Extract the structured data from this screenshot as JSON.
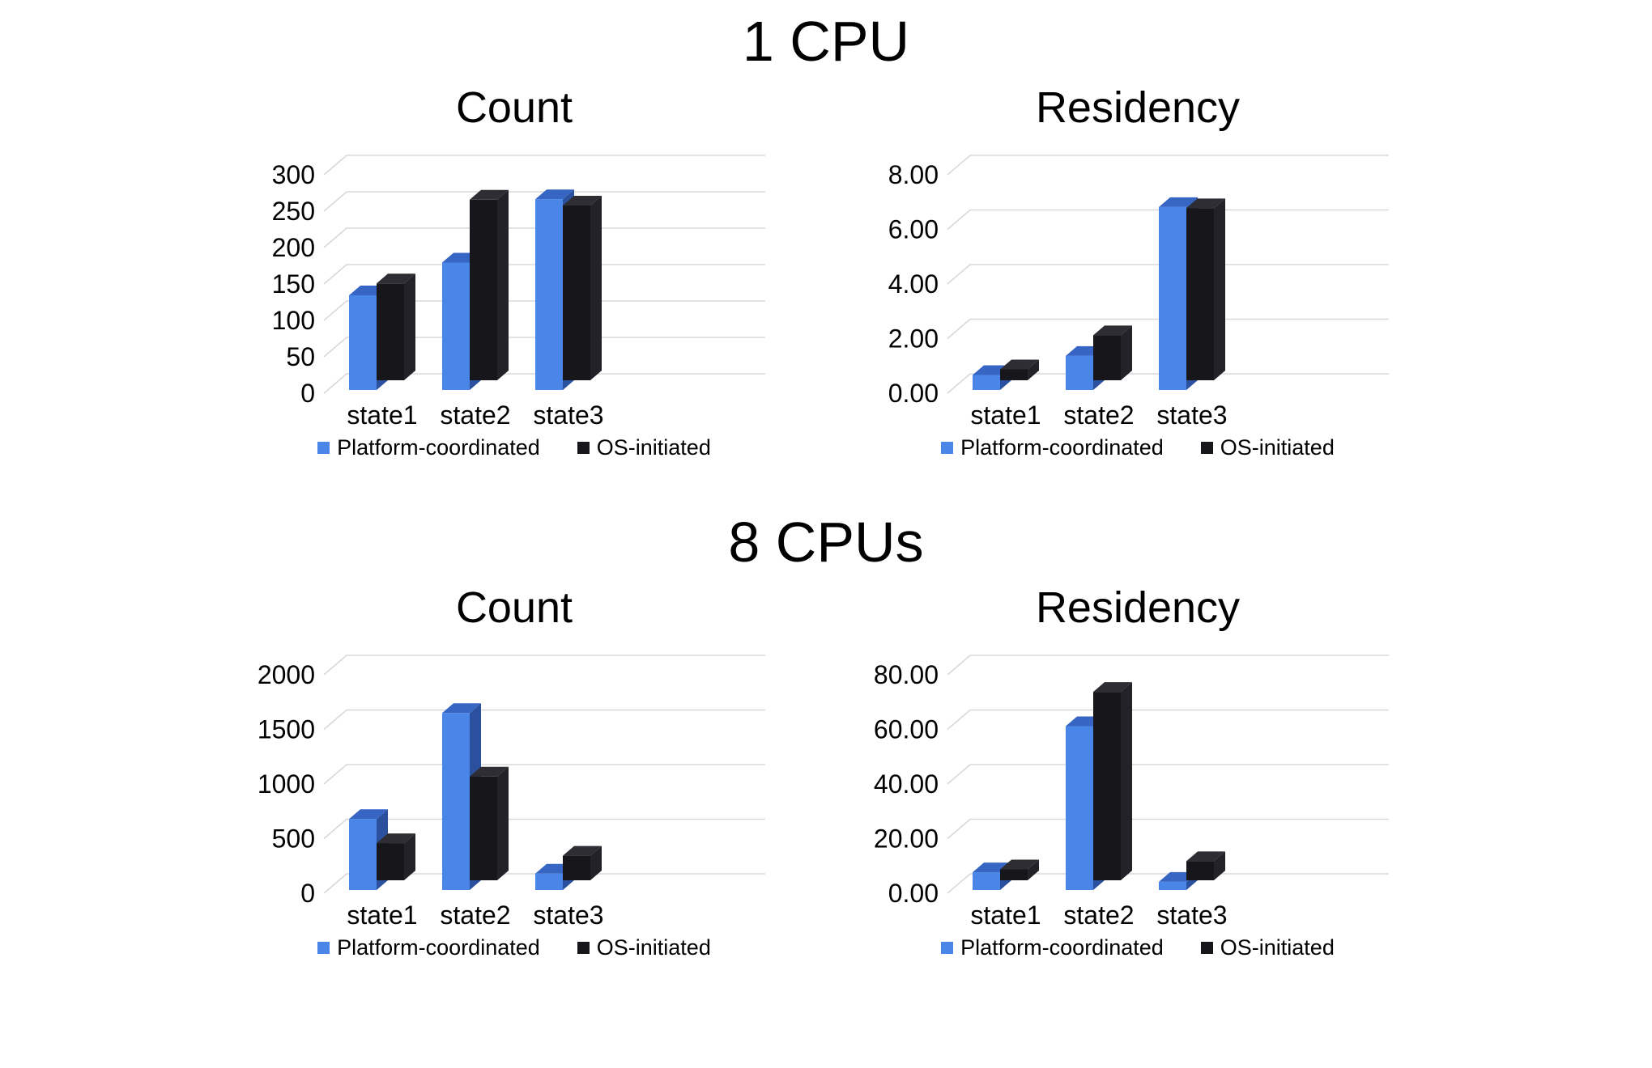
{
  "page": {
    "background": "#ffffff",
    "text_color": "#000000"
  },
  "style": {
    "grid_color": "#d8d8d8"
  },
  "sections": [
    {
      "title": "1 CPU"
    },
    {
      "title": "8 CPUs"
    }
  ],
  "chart_data": [
    {
      "section": "1 CPU",
      "type": "bar",
      "projection": "3d",
      "title": "Count",
      "categories": [
        "state1",
        "state2",
        "state3"
      ],
      "y_ticks": [
        "0",
        "50",
        "100",
        "150",
        "200",
        "250",
        "300"
      ],
      "ylim": [
        0,
        300
      ],
      "grid": true,
      "legend_position": "bottom",
      "series": [
        {
          "name": "Platform-coordinated",
          "values": [
            130,
            175,
            262
          ],
          "colors": {
            "front": "#4a86e8",
            "top": "#3765c4",
            "side": "#2b509d"
          }
        },
        {
          "name": "OS-initiated",
          "values": [
            133,
            248,
            240
          ],
          "colors": {
            "front": "#17171b",
            "top": "#2d2d33",
            "side": "#222228"
          }
        }
      ]
    },
    {
      "section": "1 CPU",
      "type": "bar",
      "projection": "3d",
      "title": "Residency",
      "categories": [
        "state1",
        "state2",
        "state3"
      ],
      "y_ticks": [
        "0.00",
        "2.00",
        "4.00",
        "6.00",
        "8.00"
      ],
      "ylim": [
        0,
        8
      ],
      "grid": true,
      "legend_position": "bottom",
      "series": [
        {
          "name": "Platform-coordinated",
          "values": [
            0.55,
            1.25,
            6.7
          ],
          "colors": {
            "front": "#4a86e8",
            "top": "#3765c4",
            "side": "#2b509d"
          }
        },
        {
          "name": "OS-initiated",
          "values": [
            0.4,
            1.65,
            6.3
          ],
          "colors": {
            "front": "#17171b",
            "top": "#2d2d33",
            "side": "#222228"
          }
        }
      ]
    },
    {
      "section": "8 CPUs",
      "type": "bar",
      "projection": "3d",
      "title": "Count",
      "categories": [
        "state1",
        "state2",
        "state3"
      ],
      "y_ticks": [
        "0",
        "500",
        "1000",
        "1500",
        "2000"
      ],
      "ylim": [
        0,
        2000
      ],
      "grid": true,
      "legend_position": "bottom",
      "series": [
        {
          "name": "Platform-coordinated",
          "values": [
            650,
            1620,
            150
          ],
          "colors": {
            "front": "#4a86e8",
            "top": "#3765c4",
            "side": "#2b509d"
          }
        },
        {
          "name": "OS-initiated",
          "values": [
            340,
            950,
            225
          ],
          "colors": {
            "front": "#17171b",
            "top": "#2d2d33",
            "side": "#222228"
          }
        }
      ]
    },
    {
      "section": "8 CPUs",
      "type": "bar",
      "projection": "3d",
      "title": "Residency",
      "categories": [
        "state1",
        "state2",
        "state3"
      ],
      "y_ticks": [
        "0.00",
        "20.00",
        "40.00",
        "60.00",
        "80.00"
      ],
      "ylim": [
        0,
        80
      ],
      "grid": true,
      "legend_position": "bottom",
      "series": [
        {
          "name": "Platform-coordinated",
          "values": [
            6.5,
            60,
            3
          ],
          "colors": {
            "front": "#4a86e8",
            "top": "#3765c4",
            "side": "#2b509d"
          }
        },
        {
          "name": "OS-initiated",
          "values": [
            4,
            69,
            7
          ],
          "colors": {
            "front": "#17171b",
            "top": "#2d2d33",
            "side": "#222228"
          }
        }
      ]
    }
  ]
}
